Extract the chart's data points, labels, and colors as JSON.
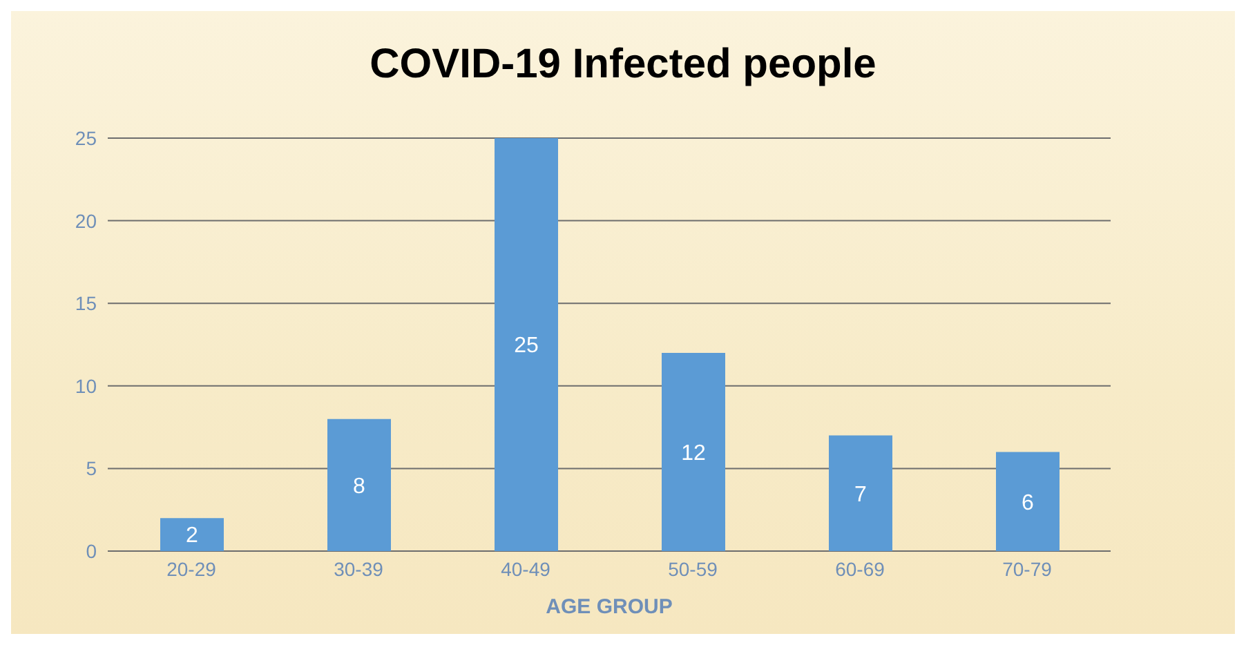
{
  "chart_data": {
    "type": "bar",
    "title": "COVID-19 Infected people",
    "xlabel": "AGE GROUP",
    "categories": [
      "20-29",
      "30-39",
      "40-49",
      "50-59",
      "60-69",
      "70-79"
    ],
    "values": [
      2,
      8,
      25,
      12,
      7,
      6
    ],
    "color": "#5b9bd5",
    "ylim": [
      0,
      25
    ],
    "yticks": [
      0,
      5,
      10,
      15,
      20,
      25
    ],
    "grid": "y",
    "data_labels": true
  }
}
